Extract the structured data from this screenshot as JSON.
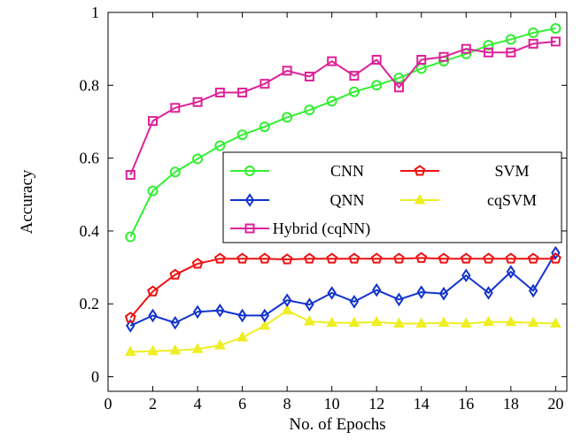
{
  "chart_data": {
    "type": "line",
    "xlabel": "No. of Epochs",
    "ylabel": "Accuracy",
    "xlim": [
      0,
      20.5
    ],
    "ylim": [
      -0.04,
      1
    ],
    "xticks": [
      0,
      2,
      4,
      6,
      8,
      10,
      12,
      14,
      16,
      18,
      20
    ],
    "yticks": [
      0,
      0.2,
      0.4,
      0.6,
      0.8,
      1
    ],
    "ytick_labels": [
      "0",
      "0.2",
      "0.4",
      "0.6",
      "0.8",
      "1"
    ],
    "grid": false,
    "legend_placement": "center-right",
    "x": [
      1,
      2,
      3,
      4,
      5,
      6,
      7,
      8,
      9,
      10,
      11,
      12,
      13,
      14,
      15,
      16,
      17,
      18,
      19,
      20
    ],
    "series": [
      {
        "name": "CNN",
        "color": "#33ee33",
        "marker": "circle",
        "values": [
          0.384,
          0.51,
          0.562,
          0.598,
          0.634,
          0.664,
          0.686,
          0.712,
          0.732,
          0.756,
          0.782,
          0.8,
          0.82,
          0.846,
          0.866,
          0.886,
          0.91,
          0.926,
          0.944,
          0.956
        ]
      },
      {
        "name": "SVM",
        "color": "#ee1111",
        "marker": "pentagon",
        "values": [
          0.162,
          0.234,
          0.28,
          0.31,
          0.324,
          0.324,
          0.324,
          0.322,
          0.324,
          0.324,
          0.324,
          0.324,
          0.324,
          0.326,
          0.324,
          0.324,
          0.324,
          0.324,
          0.324,
          0.324
        ]
      },
      {
        "name": "QNN",
        "color": "#1133cc",
        "marker": "diamond",
        "values": [
          0.14,
          0.168,
          0.148,
          0.178,
          0.182,
          0.168,
          0.168,
          0.21,
          0.198,
          0.23,
          0.206,
          0.238,
          0.212,
          0.232,
          0.228,
          0.278,
          0.23,
          0.288,
          0.236,
          0.34
        ]
      },
      {
        "name": "cqSVM",
        "color": "#eeee22",
        "marker": "triangle",
        "values": [
          0.068,
          0.07,
          0.072,
          0.076,
          0.086,
          0.108,
          0.14,
          0.182,
          0.152,
          0.148,
          0.148,
          0.15,
          0.146,
          0.146,
          0.148,
          0.146,
          0.15,
          0.15,
          0.148,
          0.146
        ]
      },
      {
        "name": "Hybrid (cqNN)",
        "color": "#dd2299",
        "marker": "square",
        "values": [
          0.554,
          0.702,
          0.738,
          0.754,
          0.78,
          0.78,
          0.804,
          0.84,
          0.824,
          0.866,
          0.826,
          0.87,
          0.794,
          0.87,
          0.878,
          0.9,
          0.89,
          0.89,
          0.914,
          0.92
        ]
      }
    ]
  }
}
